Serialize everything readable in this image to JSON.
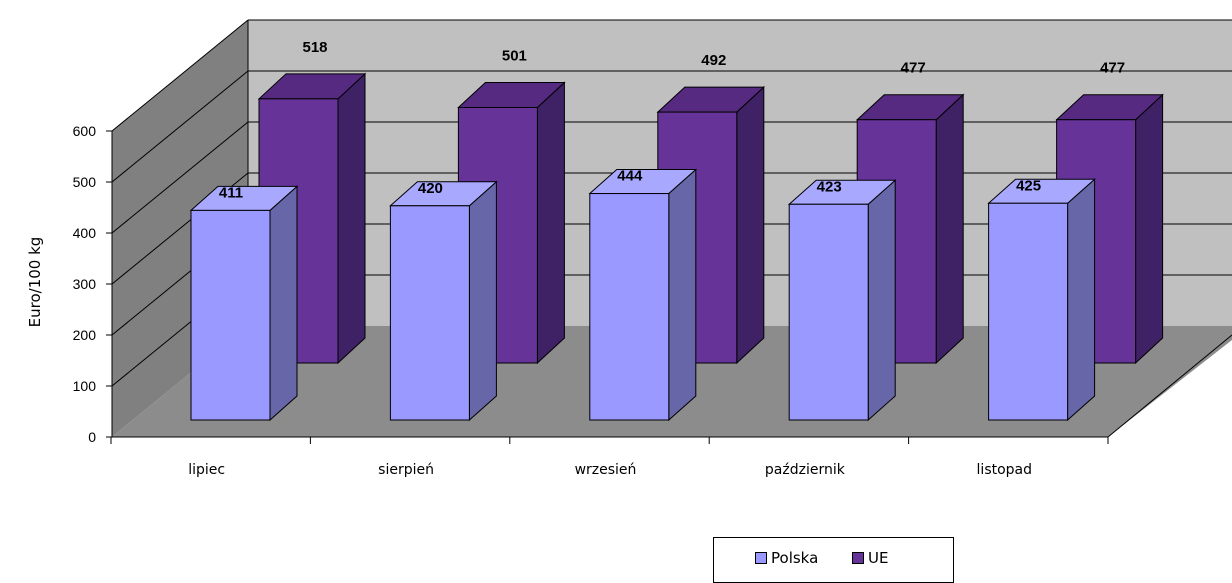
{
  "colors": {
    "polska_front": "#9999FF",
    "polska_side": "#6666A8",
    "polska_top": "#A8A8FF",
    "ue_front": "#663399",
    "ue_side": "#3F2166",
    "ue_top": "#552A80",
    "wall": "#C0C0C0",
    "side_wall": "#808080",
    "floor": "#8C8C8C"
  },
  "chart_data": {
    "type": "bar",
    "categories": [
      "lipiec",
      "sierpień",
      "wrzesień",
      "październik",
      "listopad"
    ],
    "series": [
      {
        "name": "Polska",
        "values": [
          411,
          420,
          444,
          423,
          425
        ]
      },
      {
        "name": "UE",
        "values": [
          518,
          501,
          492,
          477,
          477
        ]
      }
    ],
    "ylabel": "Euro/100 kg",
    "yticks": [
      "0",
      "100",
      "200",
      "300",
      "400",
      "500",
      "600"
    ],
    "ylim": [
      0,
      600
    ],
    "grid": true,
    "legend_position": "bottom-right"
  }
}
